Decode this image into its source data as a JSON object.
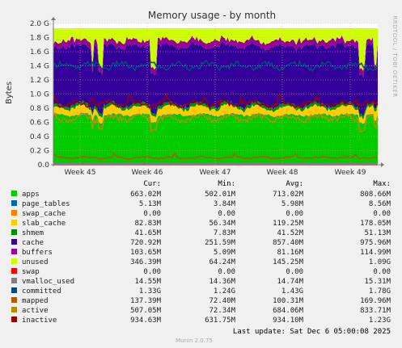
{
  "chart_data": {
    "type": "area",
    "title": "Memory usage - by month",
    "ylabel": "Bytes",
    "y_ticks": [
      "0.0",
      "0.2 G",
      "0.4 G",
      "0.6 G",
      "0.8 G",
      "1.0 G",
      "1.2 G",
      "1.4 G",
      "1.6 G",
      "1.8 G",
      "2.0 G"
    ],
    "y_tick_values": [
      0,
      0.2,
      0.4,
      0.6,
      0.8,
      1.0,
      1.2,
      1.4,
      1.6,
      1.8,
      2.0
    ],
    "ylim": [
      0,
      2.0
    ],
    "x_ticks": [
      "Week 45",
      "Week 46",
      "Week 47",
      "Week 48",
      "Week 49"
    ],
    "grid": true,
    "side_label": "RRDTOOL / TOBI OETIKER",
    "stack_order": [
      "apps",
      "page_tables",
      "swap_cache",
      "slab_cache",
      "shmem",
      "cache",
      "buffers",
      "unused"
    ],
    "line_series": [
      "swap",
      "vmalloc_used",
      "committed",
      "mapped",
      "active",
      "inactive"
    ],
    "stacked_avg_G": {
      "apps": 0.713,
      "page_tables": 0.006,
      "swap_cache": 0.0,
      "slab_cache": 0.119,
      "shmem": 0.042,
      "cache": 0.857,
      "buffers": 0.081,
      "unused": 0.145
    },
    "line_avg_G": {
      "swap": 0.0,
      "vmalloc_used": 0.015,
      "committed": 1.43,
      "mapped": 0.1,
      "active": 0.684,
      "inactive": 0.934
    }
  },
  "legend": {
    "headers": {
      "cur": "Cur:",
      "min": "Min:",
      "avg": "Avg:",
      "max": "Max:"
    },
    "rows": [
      {
        "name": "apps",
        "color": "#00CC00",
        "cur": "663.02M",
        "min": "502.01M",
        "avg": "713.02M",
        "max": "808.66M"
      },
      {
        "name": "page_tables",
        "color": "#0066B3",
        "cur": "5.13M",
        "min": "3.84M",
        "avg": "5.98M",
        "max": "8.56M"
      },
      {
        "name": "swap_cache",
        "color": "#FF8000",
        "cur": "0.00",
        "min": "0.00",
        "avg": "0.00",
        "max": "0.00"
      },
      {
        "name": "slab_cache",
        "color": "#FFCC00",
        "cur": "82.83M",
        "min": "56.34M",
        "avg": "119.25M",
        "max": "178.05M"
      },
      {
        "name": "shmem",
        "color": "#008F00",
        "cur": "41.65M",
        "min": "7.83M",
        "avg": "41.52M",
        "max": "51.13M"
      },
      {
        "name": "cache",
        "color": "#330099",
        "cur": "720.92M",
        "min": "251.59M",
        "avg": "857.40M",
        "max": "975.96M"
      },
      {
        "name": "buffers",
        "color": "#990099",
        "cur": "103.65M",
        "min": "5.09M",
        "avg": "81.16M",
        "max": "114.99M"
      },
      {
        "name": "unused",
        "color": "#CCFF00",
        "cur": "346.39M",
        "min": "64.24M",
        "avg": "145.25M",
        "max": "1.09G"
      },
      {
        "name": "swap",
        "color": "#FF0000",
        "cur": "0.00",
        "min": "0.00",
        "avg": "0.00",
        "max": "0.00"
      },
      {
        "name": "vmalloc_used",
        "color": "#808080",
        "cur": "14.55M",
        "min": "14.36M",
        "avg": "14.74M",
        "max": "15.31M"
      },
      {
        "name": "committed",
        "color": "#004D80",
        "cur": "1.33G",
        "min": "1.24G",
        "avg": "1.43G",
        "max": "1.78G"
      },
      {
        "name": "mapped",
        "color": "#B35A00",
        "cur": "137.39M",
        "min": "72.40M",
        "avg": "100.31M",
        "max": "169.96M"
      },
      {
        "name": "active",
        "color": "#B38F00",
        "cur": "507.05M",
        "min": "72.34M",
        "avg": "684.06M",
        "max": "833.71M"
      },
      {
        "name": "inactive",
        "color": "#990000",
        "cur": "934.63M",
        "min": "631.75M",
        "avg": "934.10M",
        "max": "1.23G"
      }
    ]
  },
  "footer": {
    "last_update": "Last update: Sat Dec  6 05:00:08 2025",
    "version": "Munin 2.0.75"
  },
  "colors": {
    "background": "#f0f0f0",
    "plot_background": "#ffffff",
    "grid": "#ff9999"
  }
}
